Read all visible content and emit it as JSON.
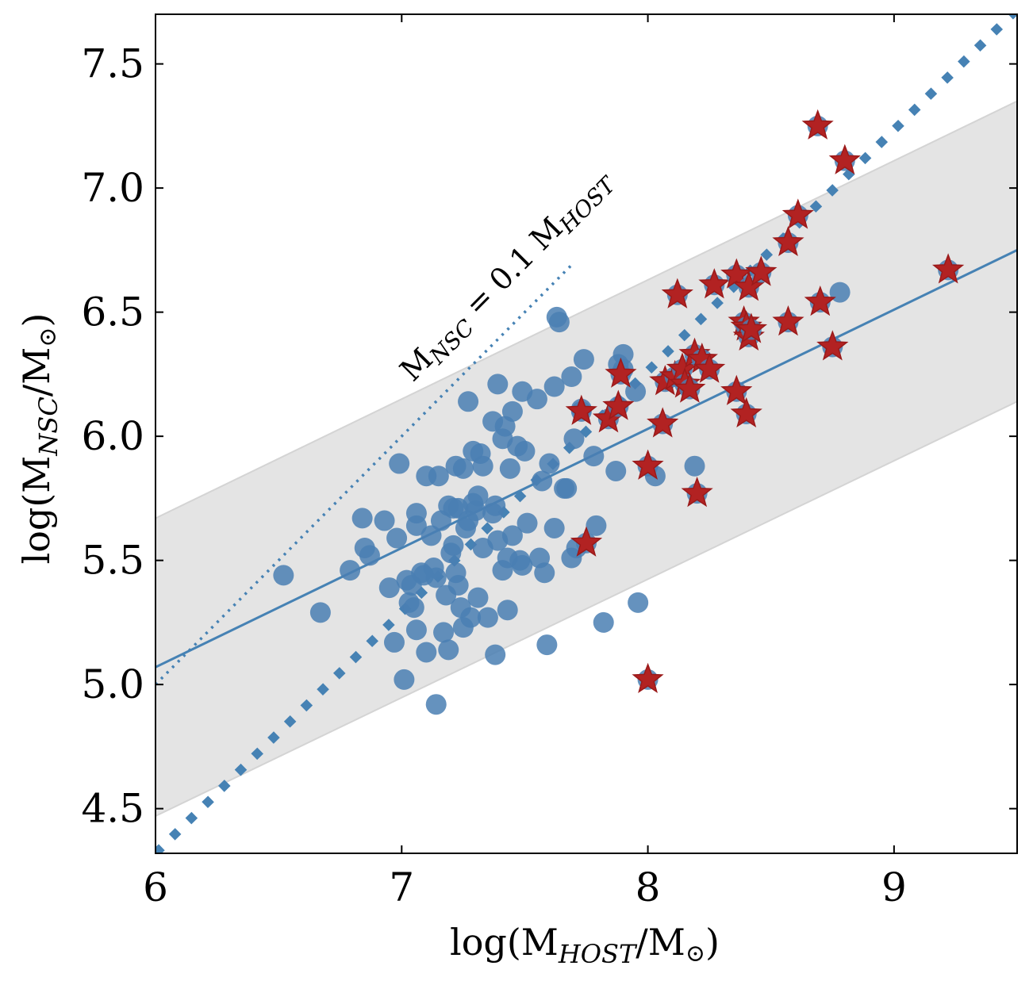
{
  "chart_data": {
    "type": "scatter",
    "xlabel": {
      "pre": "log(M",
      "sub": "HOST",
      "post": "/M",
      "sun": "⊙",
      "close": ")"
    },
    "ylabel": {
      "pre": "log(M",
      "sub": "NSC",
      "post": "/M",
      "sun": "⊙",
      "close": ")"
    },
    "xlim": [
      6.0,
      9.5
    ],
    "ylim": [
      4.32,
      7.7
    ],
    "xticks": [
      6,
      7,
      8,
      9
    ],
    "xtick_labels": [
      "6",
      "7",
      "8",
      "9"
    ],
    "yticks": [
      4.5,
      5.0,
      5.5,
      6.0,
      6.5,
      7.0,
      7.5
    ],
    "ytick_labels": [
      "4.5",
      "5.0",
      "5.5",
      "6.0",
      "6.5",
      "7.0",
      "7.5"
    ],
    "grid": false,
    "colors": {
      "circles": "#4a7fb3",
      "stars": "#b22222",
      "fit": "#4682b4",
      "band": "#e4e4e4"
    },
    "annotation": {
      "pre": "M",
      "sub1": "NSC",
      "mid": " = 0.1 M",
      "sub2": "HOST",
      "x": 7.45,
      "y": 6.62
    },
    "fit_line": {
      "x": [
        6.0,
        9.5
      ],
      "y": [
        5.07,
        6.75
      ]
    },
    "scatter_band": {
      "upper": [
        5.67,
        7.35
      ],
      "lower": [
        4.47,
        6.14
      ]
    },
    "ten_percent_line": {
      "x": [
        6.0,
        7.7
      ],
      "y": [
        5.0,
        6.7
      ]
    },
    "thick_dotted_line": {
      "x": [
        6.0,
        9.5
      ],
      "y": [
        4.32,
        7.72
      ]
    },
    "circles": [
      [
        6.52,
        5.44
      ],
      [
        6.67,
        5.29
      ],
      [
        6.79,
        5.46
      ],
      [
        6.84,
        5.67
      ],
      [
        6.85,
        5.55
      ],
      [
        6.87,
        5.52
      ],
      [
        6.93,
        5.66
      ],
      [
        6.95,
        5.39
      ],
      [
        6.97,
        5.17
      ],
      [
        6.98,
        5.59
      ],
      [
        6.99,
        5.89
      ],
      [
        7.01,
        5.02
      ],
      [
        7.02,
        5.42
      ],
      [
        7.03,
        5.33
      ],
      [
        7.04,
        5.4
      ],
      [
        7.05,
        5.31
      ],
      [
        7.06,
        5.22
      ],
      [
        7.06,
        5.64
      ],
      [
        7.06,
        5.69
      ],
      [
        7.08,
        5.45
      ],
      [
        7.09,
        5.44
      ],
      [
        7.1,
        5.84
      ],
      [
        7.1,
        5.13
      ],
      [
        7.12,
        5.6
      ],
      [
        7.13,
        5.47
      ],
      [
        7.14,
        5.43
      ],
      [
        7.14,
        4.92
      ],
      [
        7.15,
        5.84
      ],
      [
        7.16,
        5.66
      ],
      [
        7.17,
        5.21
      ],
      [
        7.18,
        5.36
      ],
      [
        7.19,
        5.72
      ],
      [
        7.19,
        5.14
      ],
      [
        7.2,
        5.53
      ],
      [
        7.21,
        5.71
      ],
      [
        7.21,
        5.56
      ],
      [
        7.22,
        5.88
      ],
      [
        7.22,
        5.45
      ],
      [
        7.23,
        5.71
      ],
      [
        7.23,
        5.4
      ],
      [
        7.24,
        5.31
      ],
      [
        7.25,
        5.87
      ],
      [
        7.25,
        5.23
      ],
      [
        7.26,
        5.63
      ],
      [
        7.27,
        5.66
      ],
      [
        7.27,
        6.14
      ],
      [
        7.28,
        5.27
      ],
      [
        7.29,
        5.94
      ],
      [
        7.29,
        5.73
      ],
      [
        7.3,
        5.7
      ],
      [
        7.31,
        5.76
      ],
      [
        7.31,
        5.35
      ],
      [
        7.32,
        5.93
      ],
      [
        7.33,
        5.88
      ],
      [
        7.33,
        5.55
      ],
      [
        7.35,
        5.27
      ],
      [
        7.37,
        6.06
      ],
      [
        7.37,
        5.69
      ],
      [
        7.38,
        5.72
      ],
      [
        7.38,
        5.12
      ],
      [
        7.39,
        6.21
      ],
      [
        7.39,
        5.58
      ],
      [
        7.41,
        5.99
      ],
      [
        7.41,
        5.46
      ],
      [
        7.42,
        6.04
      ],
      [
        7.43,
        5.51
      ],
      [
        7.43,
        5.3
      ],
      [
        7.44,
        5.87
      ],
      [
        7.45,
        6.1
      ],
      [
        7.45,
        5.6
      ],
      [
        7.47,
        5.96
      ],
      [
        7.48,
        5.5
      ],
      [
        7.49,
        6.18
      ],
      [
        7.49,
        5.48
      ],
      [
        7.5,
        5.94
      ],
      [
        7.51,
        5.65
      ],
      [
        7.55,
        6.15
      ],
      [
        7.56,
        5.51
      ],
      [
        7.57,
        5.82
      ],
      [
        7.58,
        5.45
      ],
      [
        7.59,
        5.16
      ],
      [
        7.6,
        5.89
      ],
      [
        7.62,
        6.2
      ],
      [
        7.62,
        5.63
      ],
      [
        7.63,
        6.48
      ],
      [
        7.64,
        6.46
      ],
      [
        7.66,
        5.79
      ],
      [
        7.67,
        5.79
      ],
      [
        7.69,
        6.24
      ],
      [
        7.69,
        5.51
      ],
      [
        7.7,
        5.99
      ],
      [
        7.71,
        5.55
      ],
      [
        7.73,
        6.11
      ],
      [
        7.74,
        6.31
      ],
      [
        7.78,
        5.92
      ],
      [
        7.79,
        5.64
      ],
      [
        7.82,
        5.25
      ],
      [
        7.87,
        5.86
      ],
      [
        7.88,
        6.29
      ],
      [
        7.9,
        6.33
      ],
      [
        7.9,
        6.27
      ],
      [
        7.95,
        6.18
      ],
      [
        7.96,
        5.33
      ],
      [
        8.03,
        5.84
      ],
      [
        8.19,
        5.88
      ],
      [
        8.78,
        6.58
      ]
    ],
    "stars": [
      [
        7.73,
        6.1
      ],
      [
        7.75,
        5.57
      ],
      [
        7.84,
        6.07
      ],
      [
        7.88,
        6.12
      ],
      [
        7.89,
        6.25
      ],
      [
        8.0,
        5.02
      ],
      [
        8.0,
        5.88
      ],
      [
        8.06,
        6.05
      ],
      [
        8.07,
        6.22
      ],
      [
        8.11,
        6.24
      ],
      [
        8.12,
        6.57
      ],
      [
        8.14,
        6.27
      ],
      [
        8.15,
        6.21
      ],
      [
        8.17,
        6.19
      ],
      [
        8.19,
        6.33
      ],
      [
        8.2,
        5.77
      ],
      [
        8.22,
        6.31
      ],
      [
        8.25,
        6.27
      ],
      [
        8.27,
        6.61
      ],
      [
        8.36,
        6.18
      ],
      [
        8.36,
        6.65
      ],
      [
        8.39,
        6.46
      ],
      [
        8.4,
        6.44
      ],
      [
        8.4,
        6.09
      ],
      [
        8.41,
        6.6
      ],
      [
        8.41,
        6.4
      ],
      [
        8.42,
        6.43
      ],
      [
        8.46,
        6.66
      ],
      [
        8.57,
        6.46
      ],
      [
        8.57,
        6.78
      ],
      [
        8.61,
        6.89
      ],
      [
        8.69,
        7.25
      ],
      [
        8.7,
        6.54
      ],
      [
        8.75,
        6.36
      ],
      [
        8.8,
        7.11
      ],
      [
        9.22,
        6.67
      ]
    ]
  }
}
